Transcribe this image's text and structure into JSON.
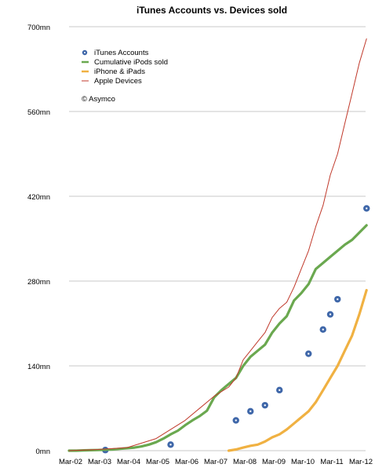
{
  "chart_data": {
    "type": "line",
    "title": "iTunes Accounts vs. Devices sold",
    "xlabel": "",
    "ylabel": "",
    "ylim": [
      0,
      700
    ],
    "yticks": [
      0,
      140,
      280,
      420,
      560,
      700
    ],
    "ytick_labels": [
      "0mn",
      "140mn",
      "280mn",
      "420mn",
      "560mn",
      "700mn"
    ],
    "x_ticks": [
      0,
      4,
      8,
      12,
      16,
      20,
      24,
      28,
      32,
      36,
      40
    ],
    "x_tick_labels": [
      "Mar-02",
      "Mar-03",
      "Mar-04",
      "Mar-05",
      "Mar-06",
      "Mar-07",
      "Mar-08",
      "Mar-09",
      "Mar-10",
      "Mar-11",
      "Mar-12"
    ],
    "xlim": [
      0,
      40
    ],
    "grid": true,
    "legend_position": "top-left",
    "annotation": "© Asymco",
    "series": [
      {
        "name": "iTunes Accounts",
        "kind": "scatter",
        "color": "#3f67a9",
        "x": [
          5,
          14,
          23,
          25,
          27,
          29,
          33,
          35,
          36,
          37,
          41
        ],
        "y": [
          1,
          10,
          50,
          65,
          75,
          100,
          160,
          200,
          225,
          250,
          400
        ]
      },
      {
        "name": "Cumulative iPods sold",
        "kind": "line",
        "color": "#6aa84f",
        "x": [
          0,
          1,
          2,
          3,
          4,
          5,
          6,
          7,
          8,
          9,
          10,
          11,
          12,
          13,
          14,
          15,
          16,
          17,
          18,
          19,
          20,
          21,
          22,
          23,
          24,
          25,
          26,
          27,
          28,
          29,
          30,
          31,
          32,
          33,
          34,
          35,
          36,
          37,
          38,
          39,
          40,
          41
        ],
        "y": [
          0,
          0,
          0.5,
          0.8,
          1,
          1.5,
          2,
          3,
          4,
          5,
          7,
          10,
          14,
          20,
          27,
          33,
          42,
          50,
          57,
          66,
          88,
          100,
          110,
          120,
          140,
          155,
          165,
          175,
          195,
          210,
          222,
          248,
          260,
          275,
          300,
          310,
          320,
          330,
          340,
          348,
          360,
          372
        ]
      },
      {
        "name": "iPhone & iPads",
        "kind": "line",
        "color": "#f0b142",
        "x": [
          22,
          23,
          24,
          25,
          26,
          27,
          28,
          29,
          30,
          31,
          32,
          33,
          34,
          35,
          36,
          37,
          38,
          39,
          40,
          41
        ],
        "y": [
          0,
          2,
          5,
          8,
          10,
          15,
          22,
          27,
          35,
          45,
          55,
          65,
          80,
          100,
          120,
          140,
          165,
          190,
          225,
          265
        ]
      },
      {
        "name": "Apple Devices",
        "kind": "line",
        "color": "#c0392b",
        "x": [
          0,
          4,
          8,
          12,
          16,
          20,
          22,
          23,
          24,
          25,
          26,
          27,
          28,
          29,
          30,
          31,
          32,
          33,
          34,
          35,
          36,
          37,
          38,
          39,
          40,
          41
        ],
        "y": [
          0,
          2,
          5,
          20,
          50,
          90,
          105,
          120,
          150,
          165,
          180,
          195,
          220,
          235,
          245,
          270,
          300,
          330,
          370,
          405,
          455,
          490,
          540,
          590,
          640,
          680
        ]
      }
    ]
  }
}
